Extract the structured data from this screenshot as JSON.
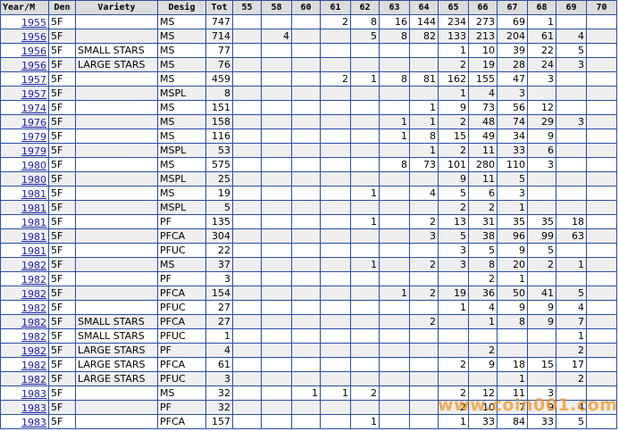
{
  "table": {
    "header": [
      "Year/M",
      "Den",
      "Variety",
      "Desig",
      "Tot",
      "55",
      "58",
      "60",
      "61",
      "62",
      "63",
      "64",
      "65",
      "66",
      "67",
      "68",
      "69",
      "70"
    ],
    "rows": [
      [
        "1955",
        "5F",
        null,
        "MS",
        747,
        null,
        null,
        null,
        2,
        8,
        16,
        144,
        234,
        273,
        69,
        1,
        null,
        null
      ],
      [
        "1956",
        "5F",
        null,
        "MS",
        714,
        null,
        4,
        null,
        null,
        5,
        8,
        82,
        133,
        213,
        204,
        61,
        4,
        null
      ],
      [
        "1956",
        "5F",
        "SMALL STARS",
        "MS",
        77,
        null,
        null,
        null,
        null,
        null,
        null,
        null,
        1,
        10,
        39,
        22,
        5,
        null
      ],
      [
        "1956",
        "5F",
        "LARGE STARS",
        "MS",
        76,
        null,
        null,
        null,
        null,
        null,
        null,
        null,
        2,
        19,
        28,
        24,
        3,
        null
      ],
      [
        "1957",
        "5F",
        null,
        "MS",
        459,
        null,
        null,
        null,
        2,
        1,
        8,
        81,
        162,
        155,
        47,
        3,
        null,
        null
      ],
      [
        "1957",
        "5F",
        null,
        "MSPL",
        8,
        null,
        null,
        null,
        null,
        null,
        null,
        null,
        1,
        4,
        3,
        null,
        null,
        null
      ],
      [
        "1974",
        "5F",
        null,
        "MS",
        151,
        null,
        null,
        null,
        null,
        null,
        null,
        1,
        9,
        73,
        56,
        12,
        null,
        null
      ],
      [
        "1976",
        "5F",
        null,
        "MS",
        158,
        null,
        null,
        null,
        null,
        null,
        1,
        1,
        2,
        48,
        74,
        29,
        3,
        null
      ],
      [
        "1979",
        "5F",
        null,
        "MS",
        116,
        null,
        null,
        null,
        null,
        null,
        1,
        8,
        15,
        49,
        34,
        9,
        null,
        null
      ],
      [
        "1979",
        "5F",
        null,
        "MSPL",
        53,
        null,
        null,
        null,
        null,
        null,
        null,
        1,
        2,
        11,
        33,
        6,
        null,
        null
      ],
      [
        "1980",
        "5F",
        null,
        "MS",
        575,
        null,
        null,
        null,
        null,
        null,
        8,
        73,
        101,
        280,
        110,
        3,
        null,
        null
      ],
      [
        "1980",
        "5F",
        null,
        "MSPL",
        25,
        null,
        null,
        null,
        null,
        null,
        null,
        null,
        9,
        11,
        5,
        null,
        null,
        null
      ],
      [
        "1981",
        "5F",
        null,
        "MS",
        19,
        null,
        null,
        null,
        null,
        1,
        null,
        4,
        5,
        6,
        3,
        null,
        null,
        null
      ],
      [
        "1981",
        "5F",
        null,
        "MSPL",
        5,
        null,
        null,
        null,
        null,
        null,
        null,
        null,
        2,
        2,
        1,
        null,
        null,
        null
      ],
      [
        "1981",
        "5F",
        null,
        "PF",
        135,
        null,
        null,
        null,
        null,
        1,
        null,
        2,
        13,
        31,
        35,
        35,
        18,
        null
      ],
      [
        "1981",
        "5F",
        null,
        "PFCA",
        304,
        null,
        null,
        null,
        null,
        null,
        null,
        3,
        5,
        38,
        96,
        99,
        63,
        null
      ],
      [
        "1981",
        "5F",
        null,
        "PFUC",
        22,
        null,
        null,
        null,
        null,
        null,
        null,
        null,
        3,
        5,
        9,
        5,
        null,
        null
      ],
      [
        "1982",
        "5F",
        null,
        "MS",
        37,
        null,
        null,
        null,
        null,
        1,
        null,
        2,
        3,
        8,
        20,
        2,
        1,
        null
      ],
      [
        "1982",
        "5F",
        null,
        "PF",
        3,
        null,
        null,
        null,
        null,
        null,
        null,
        null,
        null,
        2,
        1,
        null,
        null,
        null
      ],
      [
        "1982",
        "5F",
        null,
        "PFCA",
        154,
        null,
        null,
        null,
        null,
        null,
        1,
        2,
        19,
        36,
        50,
        41,
        5,
        null
      ],
      [
        "1982",
        "5F",
        null,
        "PFUC",
        27,
        null,
        null,
        null,
        null,
        null,
        null,
        null,
        1,
        4,
        9,
        9,
        4,
        null
      ],
      [
        "1982",
        "5F",
        "SMALL STARS",
        "PFCA",
        27,
        null,
        null,
        null,
        null,
        null,
        null,
        2,
        null,
        1,
        8,
        9,
        7,
        null
      ],
      [
        "1982",
        "5F",
        "SMALL STARS",
        "PFUC",
        1,
        null,
        null,
        null,
        null,
        null,
        null,
        null,
        null,
        null,
        null,
        null,
        1,
        null
      ],
      [
        "1982",
        "5F",
        "LARGE STARS",
        "PF",
        4,
        null,
        null,
        null,
        null,
        null,
        null,
        null,
        null,
        2,
        null,
        null,
        2,
        null
      ],
      [
        "1982",
        "5F",
        "LARGE STARS",
        "PFCA",
        61,
        null,
        null,
        null,
        null,
        null,
        null,
        null,
        2,
        9,
        18,
        15,
        17,
        null
      ],
      [
        "1982",
        "5F",
        "LARGE STARS",
        "PFUC",
        3,
        null,
        null,
        null,
        null,
        null,
        null,
        null,
        null,
        null,
        1,
        null,
        2,
        null
      ],
      [
        "1983",
        "5F",
        null,
        "MS",
        32,
        null,
        null,
        1,
        1,
        2,
        null,
        null,
        2,
        12,
        11,
        3,
        null,
        null
      ],
      [
        "1983",
        "5F",
        null,
        "PF",
        32,
        null,
        null,
        null,
        null,
        null,
        null,
        null,
        2,
        10,
        7,
        9,
        4,
        null
      ],
      [
        "1983",
        "5F",
        null,
        "PFCA",
        157,
        null,
        null,
        null,
        null,
        1,
        null,
        null,
        1,
        33,
        84,
        33,
        5,
        null
      ]
    ]
  },
  "watermark": "www.coin001.com"
}
